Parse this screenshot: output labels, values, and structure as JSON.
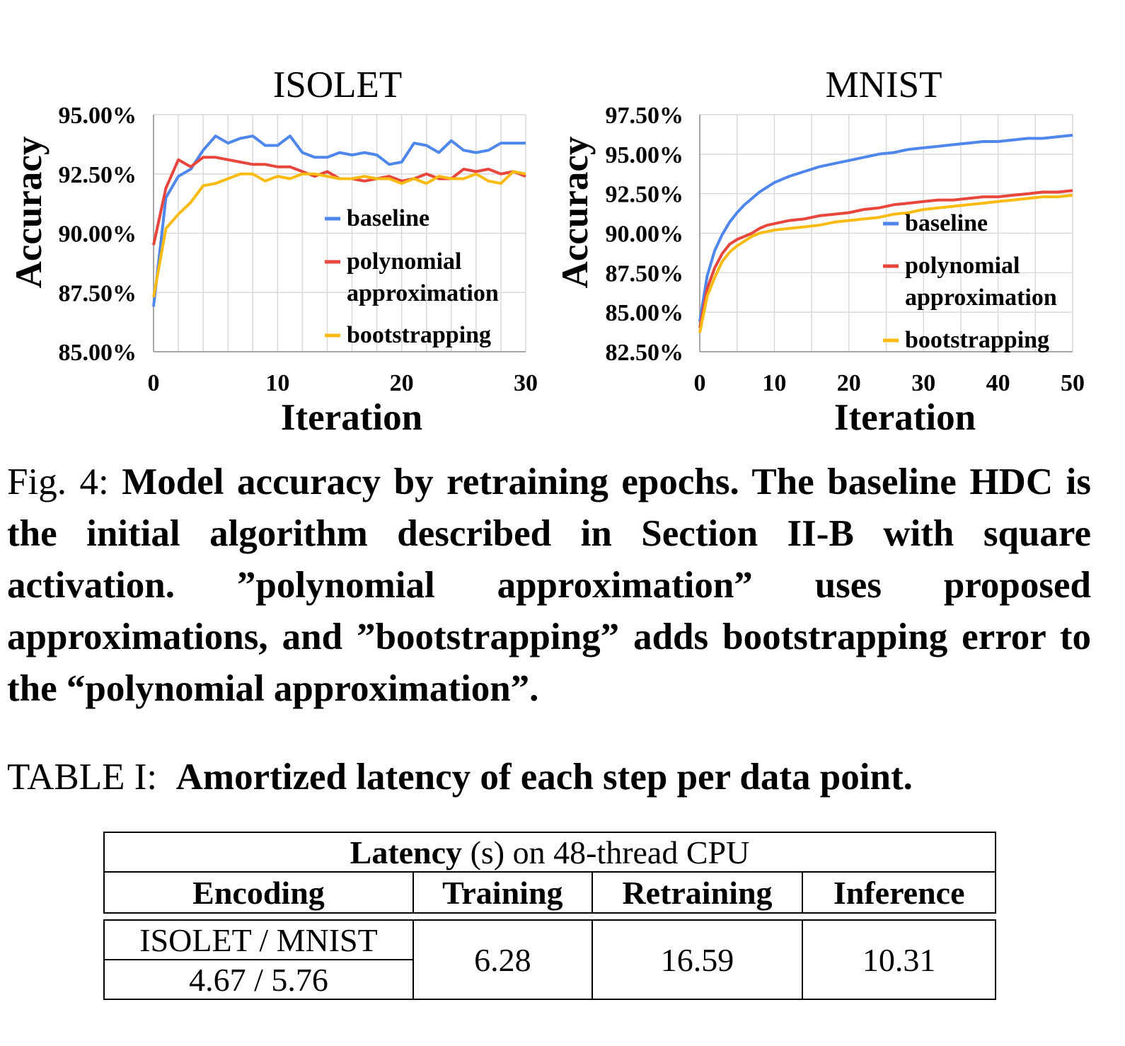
{
  "chart_data": [
    {
      "type": "line",
      "title": "ISOLET",
      "xlabel": "Iteration",
      "ylabel": "Accuracy",
      "xlim": [
        0,
        30
      ],
      "ylim": [
        85,
        95
      ],
      "xticks": [
        0,
        10,
        20,
        30
      ],
      "yticks": [
        85,
        87.5,
        90,
        92.5,
        95
      ],
      "ytick_labels": [
        "85.00%",
        "87.50%",
        "90.00%",
        "92.50%",
        "95.00%"
      ],
      "grid": true,
      "legend": "center-right",
      "series": [
        {
          "name": "baseline",
          "color": "#4f86ec",
          "x": [
            0,
            1,
            2,
            3,
            4,
            5,
            6,
            7,
            8,
            9,
            10,
            11,
            12,
            13,
            14,
            15,
            16,
            17,
            18,
            19,
            20,
            21,
            22,
            23,
            24,
            25,
            26,
            27,
            28,
            29,
            30
          ],
          "values": [
            86.9,
            91.5,
            92.4,
            92.7,
            93.5,
            94.1,
            93.8,
            94.0,
            94.1,
            93.7,
            93.7,
            94.1,
            93.4,
            93.2,
            93.2,
            93.4,
            93.3,
            93.4,
            93.3,
            92.9,
            93.0,
            93.8,
            93.7,
            93.4,
            93.9,
            93.5,
            93.4,
            93.5,
            93.8,
            93.8,
            93.8
          ]
        },
        {
          "name": "polynomial approximation",
          "color": "#e8453c",
          "x": [
            0,
            1,
            2,
            3,
            4,
            5,
            6,
            7,
            8,
            9,
            10,
            11,
            12,
            13,
            14,
            15,
            16,
            17,
            18,
            19,
            20,
            21,
            22,
            23,
            24,
            25,
            26,
            27,
            28,
            29,
            30
          ],
          "values": [
            89.5,
            91.9,
            93.1,
            92.8,
            93.2,
            93.2,
            93.1,
            93.0,
            92.9,
            92.9,
            92.8,
            92.8,
            92.6,
            92.4,
            92.6,
            92.3,
            92.3,
            92.2,
            92.3,
            92.4,
            92.2,
            92.3,
            92.5,
            92.3,
            92.3,
            92.7,
            92.6,
            92.7,
            92.5,
            92.6,
            92.4
          ]
        },
        {
          "name": "bootstrapping",
          "color": "#f9bb12",
          "x": [
            0,
            1,
            2,
            3,
            4,
            5,
            6,
            7,
            8,
            9,
            10,
            11,
            12,
            13,
            14,
            15,
            16,
            17,
            18,
            19,
            20,
            21,
            22,
            23,
            24,
            25,
            26,
            27,
            28,
            29,
            30
          ],
          "values": [
            87.3,
            90.2,
            90.8,
            91.3,
            92.0,
            92.1,
            92.3,
            92.5,
            92.5,
            92.2,
            92.4,
            92.3,
            92.5,
            92.5,
            92.4,
            92.3,
            92.3,
            92.4,
            92.3,
            92.3,
            92.1,
            92.3,
            92.1,
            92.4,
            92.3,
            92.3,
            92.5,
            92.2,
            92.1,
            92.6,
            92.5
          ]
        }
      ]
    },
    {
      "type": "line",
      "title": "MNIST",
      "xlabel": "Iteration",
      "ylabel": "Accuracy",
      "xlim": [
        0,
        50
      ],
      "ylim": [
        82.5,
        97.5
      ],
      "xticks": [
        0,
        10,
        20,
        30,
        40,
        50
      ],
      "yticks": [
        82.5,
        85,
        87.5,
        90,
        92.5,
        95,
        97.5
      ],
      "ytick_labels": [
        "82.50%",
        "85.00%",
        "87.50%",
        "90.00%",
        "92.50%",
        "95.00%",
        "97.50%"
      ],
      "grid": true,
      "legend": "center-right",
      "series": [
        {
          "name": "baseline",
          "color": "#4f86ec",
          "x": [
            0,
            1,
            2,
            3,
            4,
            5,
            6,
            7,
            8,
            9,
            10,
            12,
            14,
            16,
            18,
            20,
            22,
            24,
            26,
            28,
            30,
            32,
            34,
            36,
            38,
            40,
            42,
            44,
            46,
            48,
            50
          ],
          "values": [
            84.4,
            87.3,
            88.9,
            89.9,
            90.7,
            91.3,
            91.8,
            92.2,
            92.6,
            92.9,
            93.2,
            93.6,
            93.9,
            94.2,
            94.4,
            94.6,
            94.8,
            95.0,
            95.1,
            95.3,
            95.4,
            95.5,
            95.6,
            95.7,
            95.8,
            95.8,
            95.9,
            96.0,
            96.0,
            96.1,
            96.2
          ]
        },
        {
          "name": "polynomial approximation",
          "color": "#e8453c",
          "x": [
            0,
            1,
            2,
            3,
            4,
            5,
            6,
            7,
            8,
            9,
            10,
            12,
            14,
            16,
            18,
            20,
            22,
            24,
            26,
            28,
            30,
            32,
            34,
            36,
            38,
            40,
            42,
            44,
            46,
            48,
            50
          ],
          "values": [
            84.0,
            86.5,
            87.8,
            88.7,
            89.3,
            89.6,
            89.8,
            90.0,
            90.3,
            90.5,
            90.6,
            90.8,
            90.9,
            91.1,
            91.2,
            91.3,
            91.5,
            91.6,
            91.8,
            91.9,
            92.0,
            92.1,
            92.1,
            92.2,
            92.3,
            92.3,
            92.4,
            92.5,
            92.6,
            92.6,
            92.7
          ]
        },
        {
          "name": "bootstrapping",
          "color": "#f9bb12",
          "x": [
            0,
            1,
            2,
            3,
            4,
            5,
            6,
            7,
            8,
            9,
            10,
            12,
            14,
            16,
            18,
            20,
            22,
            24,
            26,
            28,
            30,
            32,
            34,
            36,
            38,
            40,
            42,
            44,
            46,
            48,
            50
          ],
          "values": [
            83.7,
            86.0,
            87.2,
            88.2,
            88.8,
            89.2,
            89.5,
            89.8,
            90.0,
            90.1,
            90.2,
            90.3,
            90.4,
            90.5,
            90.7,
            90.8,
            90.9,
            91.0,
            91.2,
            91.3,
            91.5,
            91.6,
            91.7,
            91.8,
            91.9,
            92.0,
            92.1,
            92.2,
            92.3,
            92.3,
            92.4
          ]
        }
      ]
    }
  ],
  "figure_caption": {
    "label": "Fig. 4: ",
    "text": "Model accuracy by retraining epochs. The baseline HDC is the initial algorithm described in Section II-B with square activation. ”polynomial approximation” uses proposed approximations, and ”bootstrapping” adds bootstrapping error to the “polynomial approximation”."
  },
  "table_caption": {
    "label": "TABLE I:  ",
    "text": "Amortized latency of each step per data point."
  },
  "table": {
    "header_bold": "Latency",
    "header_rest": " (s) on 48-thread CPU",
    "columns": [
      "Encoding",
      "Training",
      "Retraining",
      "Inference"
    ],
    "encoding_datasets": "ISOLET / MNIST",
    "encoding_values": "4.67 / 5.76",
    "training": "6.28",
    "retraining": "16.59",
    "inference": "10.31"
  }
}
